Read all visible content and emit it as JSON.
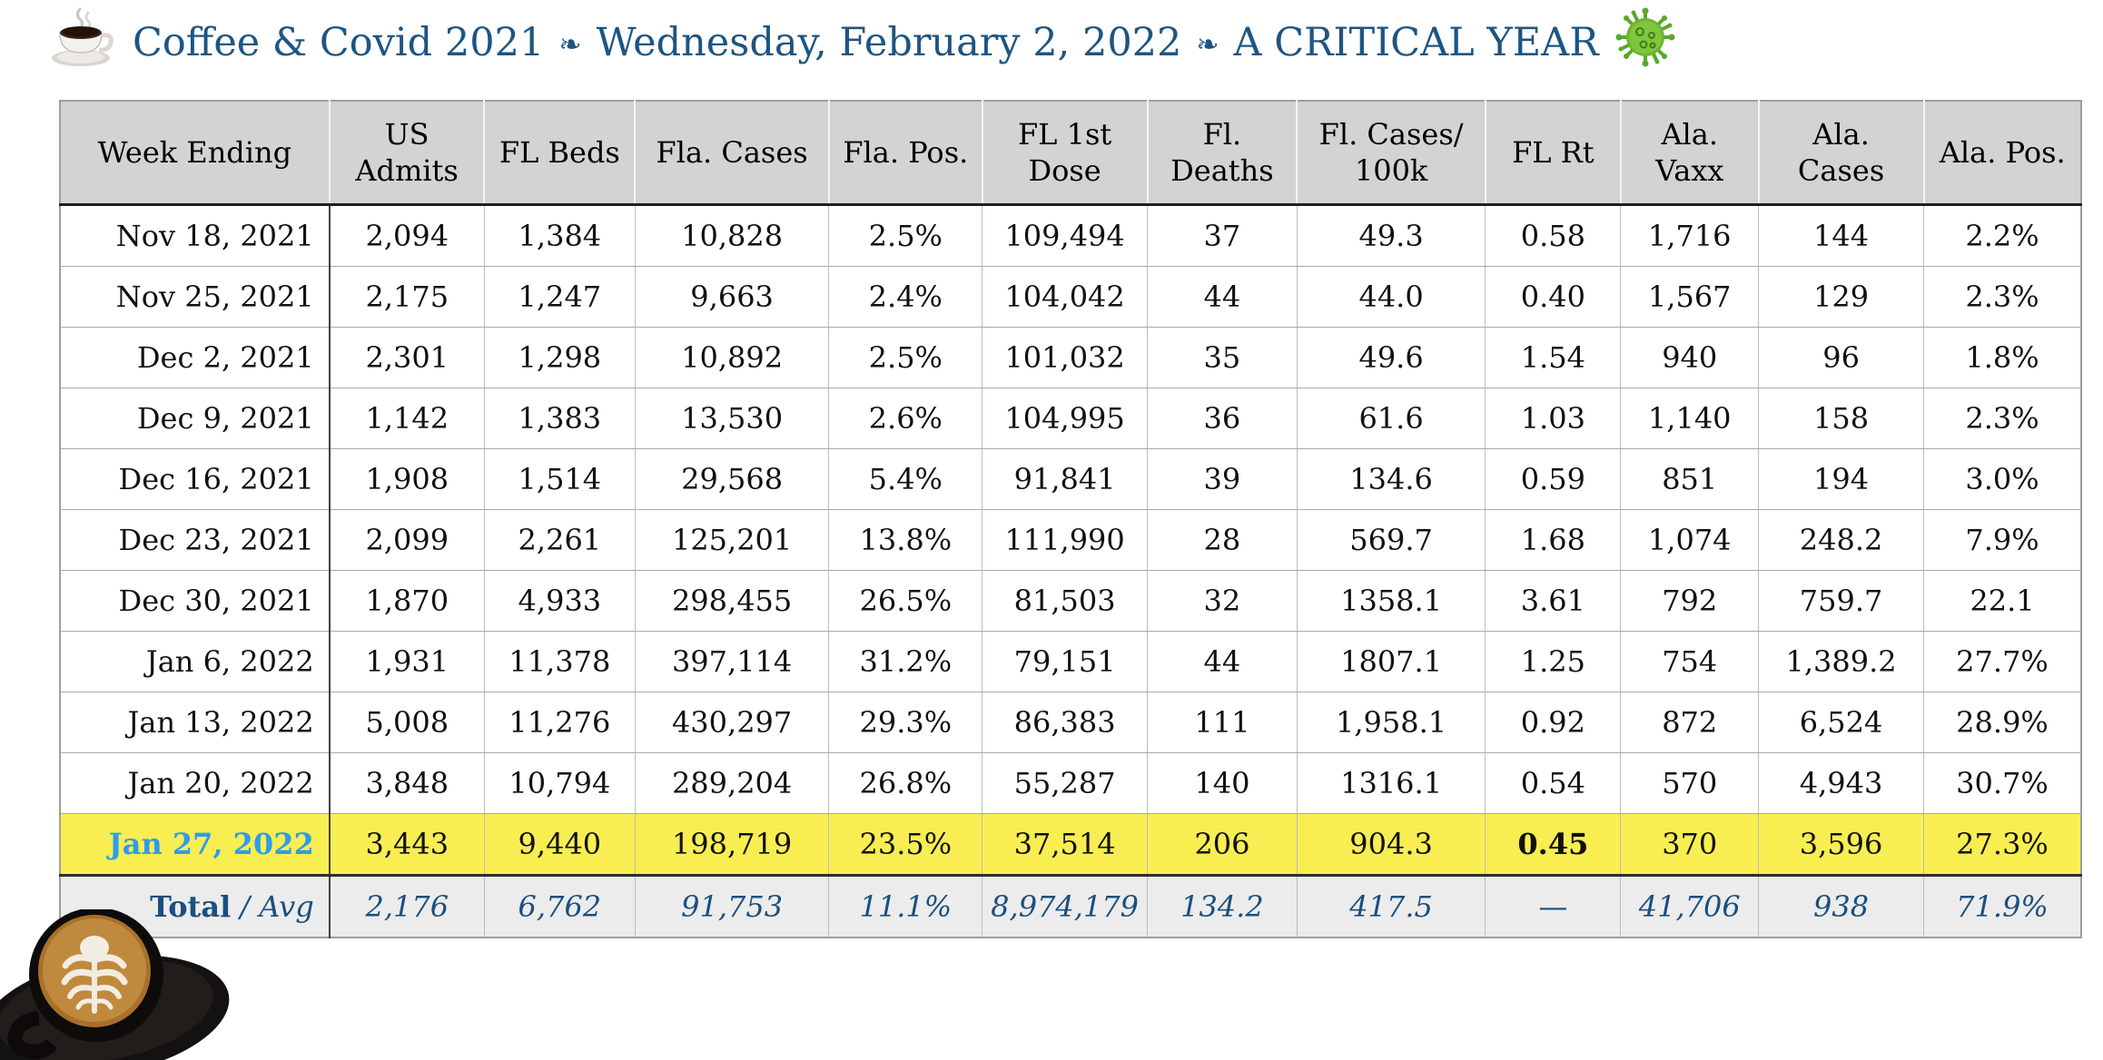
{
  "title": {
    "part1": "Coffee & Covid 2021",
    "separator": "❧",
    "part2": "Wednesday, February 2, 2022",
    "part3": "A CRITICAL YEAR",
    "left_icon": "coffee-cup",
    "right_icon": "virus",
    "color": "#1d5583"
  },
  "table": {
    "columns": [
      "Week Ending",
      "US Admits",
      "FL Beds",
      "Fla. Cases",
      "Fla. Pos.",
      "FL 1st Dose",
      "Fl. Deaths",
      "Fl. Cases/ 100k",
      "FL Rt",
      "Ala. Vaxx",
      "Ala. Cases",
      "Ala. Pos."
    ],
    "rows": [
      {
        "week": "Nov 18, 2021",
        "cells": [
          "2,094",
          "1,384",
          "10,828",
          "2.5%",
          "109,494",
          "37",
          "49.3",
          "0.58",
          "1,716",
          "144",
          "2.2%"
        ]
      },
      {
        "week": "Nov 25, 2021",
        "cells": [
          "2,175",
          "1,247",
          "9,663",
          "2.4%",
          "104,042",
          "44",
          "44.0",
          "0.40",
          "1,567",
          "129",
          "2.3%"
        ]
      },
      {
        "week": "Dec 2, 2021",
        "cells": [
          "2,301",
          "1,298",
          "10,892",
          "2.5%",
          "101,032",
          "35",
          "49.6",
          "1.54",
          "940",
          "96",
          "1.8%"
        ]
      },
      {
        "week": "Dec 9, 2021",
        "cells": [
          "1,142",
          "1,383",
          "13,530",
          "2.6%",
          "104,995",
          "36",
          "61.6",
          "1.03",
          "1,140",
          "158",
          "2.3%"
        ]
      },
      {
        "week": "Dec 16, 2021",
        "cells": [
          "1,908",
          "1,514",
          "29,568",
          "5.4%",
          "91,841",
          "39",
          "134.6",
          "0.59",
          "851",
          "194",
          "3.0%"
        ]
      },
      {
        "week": "Dec 23, 2021",
        "cells": [
          "2,099",
          "2,261",
          "125,201",
          "13.8%",
          "111,990",
          "28",
          "569.7",
          "1.68",
          "1,074",
          "248.2",
          "7.9%"
        ]
      },
      {
        "week": "Dec 30, 2021",
        "cells": [
          "1,870",
          "4,933",
          "298,455",
          "26.5%",
          "81,503",
          "32",
          "1358.1",
          "3.61",
          "792",
          "759.7",
          "22.1"
        ]
      },
      {
        "week": "Jan 6, 2022",
        "cells": [
          "1,931",
          "11,378",
          "397,114",
          "31.2%",
          "79,151",
          "44",
          "1807.1",
          "1.25",
          "754",
          "1,389.2",
          "27.7%"
        ]
      },
      {
        "week": "Jan 13, 2022",
        "cells": [
          "5,008",
          "11,276",
          "430,297",
          "29.3%",
          "86,383",
          "111",
          "1,958.1",
          "0.92",
          "872",
          "6,524",
          "28.9%"
        ]
      },
      {
        "week": "Jan 20, 2022",
        "cells": [
          "3,848",
          "10,794",
          "289,204",
          "26.8%",
          "55,287",
          "140",
          "1316.1",
          "0.54",
          "570",
          "4,943",
          "30.7%"
        ]
      },
      {
        "week": "Jan 27, 2022",
        "highlight": true,
        "bold_cells": [
          7
        ],
        "cells": [
          "3,443",
          "9,440",
          "198,719",
          "23.5%",
          "37,514",
          "206",
          "904.3",
          "0.45",
          "370",
          "3,596",
          "27.3%"
        ]
      }
    ],
    "total_row": {
      "label_bold": "Total",
      "label_italic": " / Avg",
      "cells": [
        "2,176",
        "6,762",
        "91,753",
        "11.1%",
        "8,974,179",
        "134.2",
        "417.5",
        "—",
        "41,706",
        "938",
        "71.9%"
      ]
    },
    "highlight_color": "#f8ee52",
    "highlight_date_color": "#2f9ce8",
    "header_bg": "#d3d3d3",
    "total_row_bg": "#ececec",
    "total_text_color": "#1b4f7e"
  }
}
